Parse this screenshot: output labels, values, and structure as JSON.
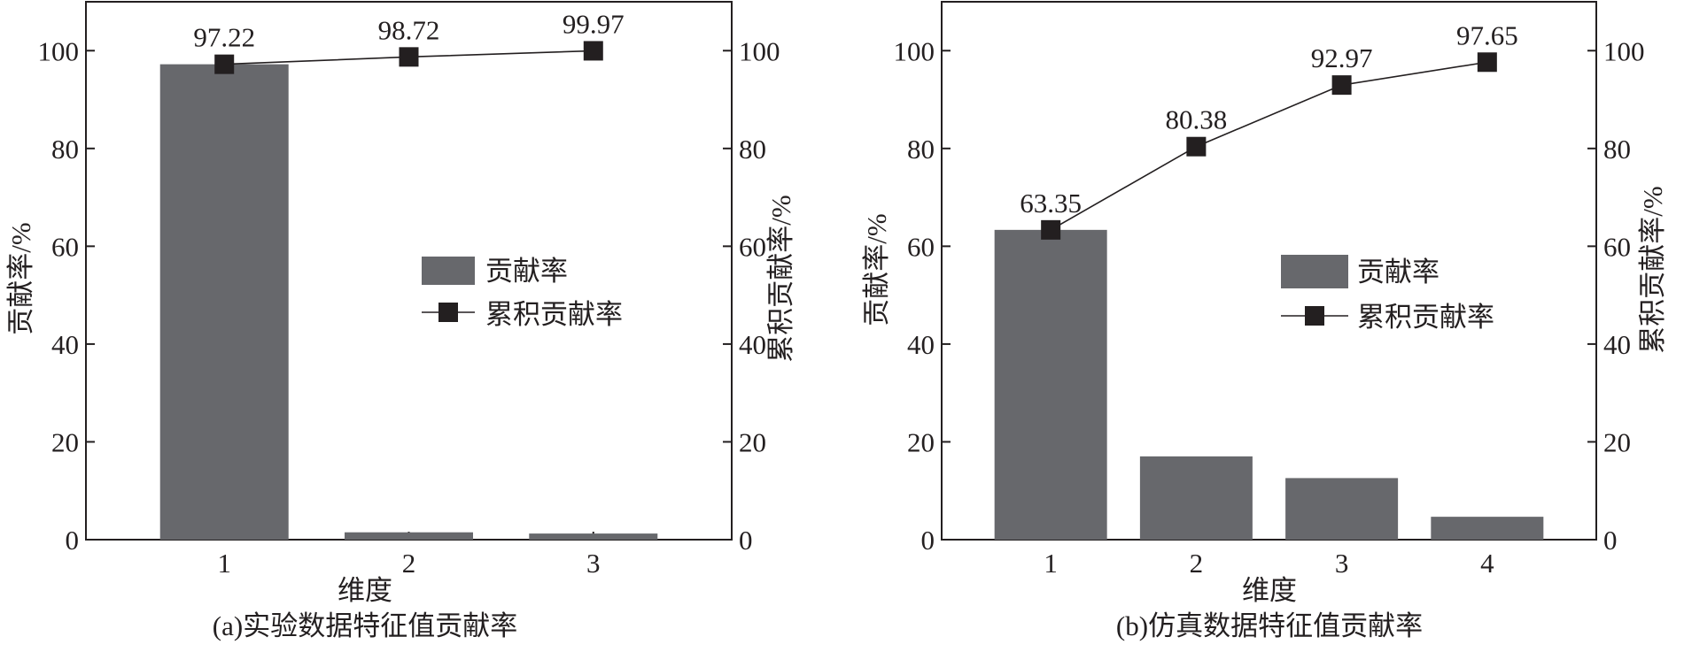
{
  "chart_data": [
    {
      "type": "bar",
      "caption": "(a)实验数据特征值贡献率",
      "xlabel": "维度",
      "ylabel_left": "贡献率/%",
      "ylabel_right": "累积贡献率/%",
      "ylim": [
        0,
        110
      ],
      "yticks": [
        0,
        20,
        40,
        60,
        80,
        100
      ],
      "grid": false,
      "legend_position": "center-right",
      "categories": [
        "1",
        "2",
        "3"
      ],
      "series": [
        {
          "name": "贡献率",
          "kind": "bar",
          "color": "#67686c",
          "values": [
            97.22,
            1.5,
            1.25
          ]
        },
        {
          "name": "累积贡献率",
          "kind": "line",
          "marker": "square",
          "color": "#231f20",
          "values": [
            97.22,
            98.72,
            99.97
          ]
        }
      ],
      "data_labels": [
        "97.22",
        "98.72",
        "99.97"
      ]
    },
    {
      "type": "bar",
      "caption": "(b)仿真数据特征值贡献率",
      "xlabel": "维度",
      "ylabel_left": "贡献率/%",
      "ylabel_right": "累积贡献率/%",
      "ylim": [
        0,
        110
      ],
      "yticks": [
        0,
        20,
        40,
        60,
        80,
        100
      ],
      "grid": false,
      "legend_position": "center-right",
      "categories": [
        "1",
        "2",
        "3",
        "4"
      ],
      "series": [
        {
          "name": "贡献率",
          "kind": "bar",
          "color": "#67686c",
          "values": [
            63.35,
            17.03,
            12.59,
            4.68
          ]
        },
        {
          "name": "累积贡献率",
          "kind": "line",
          "marker": "square",
          "color": "#231f20",
          "values": [
            63.35,
            80.38,
            92.97,
            97.65
          ]
        }
      ],
      "data_labels": [
        "63.35",
        "80.38",
        "92.97",
        "97.65"
      ]
    }
  ]
}
